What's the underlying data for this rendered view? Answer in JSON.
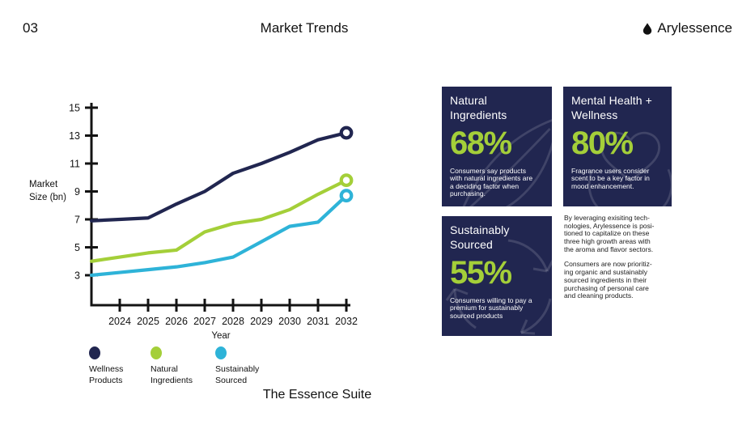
{
  "header": {
    "page_number": "03",
    "title": "Market Trends",
    "brand": "Arylessence"
  },
  "colors": {
    "navy": "#212650",
    "green": "#a4cf39",
    "cyan": "#2eb3d8",
    "ink": "#131313"
  },
  "chart": {
    "y_axis_label_lines": [
      "Market",
      "Size (bn)"
    ],
    "x_axis_label": "Year"
  },
  "chart_data": {
    "type": "line",
    "title": "",
    "xlabel": "Year",
    "ylabel": "Market Size (bn)",
    "x": [
      2023,
      2024,
      2025,
      2026,
      2027,
      2028,
      2029,
      2030,
      2031,
      2032
    ],
    "x_tick_labels": [
      "2024",
      "2025",
      "2026",
      "2027",
      "2028",
      "2029",
      "2030",
      "2031",
      "2032"
    ],
    "y_ticks": [
      3,
      5,
      7,
      9,
      11,
      13,
      15
    ],
    "ylim": [
      1,
      15
    ],
    "grid": false,
    "legend_position": "below-left",
    "end_marker": "open-circle",
    "series": [
      {
        "name": "Wellness Products",
        "color": "#212650",
        "values": [
          6.9,
          7.0,
          7.1,
          8.1,
          9.0,
          10.3,
          11.0,
          11.8,
          12.7,
          13.2
        ]
      },
      {
        "name": "Natural Ingredients",
        "color": "#a4cf39",
        "values": [
          4.0,
          4.3,
          4.6,
          4.8,
          6.1,
          6.7,
          7.0,
          7.7,
          8.8,
          9.8
        ]
      },
      {
        "name": "Sustainably Sourced",
        "color": "#2eb3d8",
        "values": [
          3.0,
          3.2,
          3.4,
          3.6,
          3.9,
          4.3,
          5.4,
          6.5,
          6.8,
          8.7
        ]
      }
    ]
  },
  "legend": {
    "items": [
      {
        "label_lines": [
          "Wellness",
          "Products"
        ],
        "color": "#212650"
      },
      {
        "label_lines": [
          "Natural",
          "Ingredients"
        ],
        "color": "#a4cf39"
      },
      {
        "label_lines": [
          "Sustainably",
          "Sourced"
        ],
        "color": "#2eb3d8"
      }
    ]
  },
  "cards": [
    {
      "title_lines": [
        "Natural",
        "Ingredients"
      ],
      "stat": "68%",
      "body_lines": [
        "Consumers say products",
        "with natural ingredients are",
        "a deciding factor when",
        "purchasing."
      ],
      "watermark": "leaf-icon"
    },
    {
      "title_lines": [
        "Mental Health +",
        "Wellness"
      ],
      "stat": "80%",
      "body_lines": [
        "Fragrance users consider",
        "scent to be a key factor in",
        "mood enhancement."
      ],
      "watermark": "hands-heart-icon"
    },
    {
      "title_lines": [
        "Sustainably",
        "Sourced"
      ],
      "stat": "55%",
      "body_lines": [
        "Consumers willing to pay a",
        "premium for sustainably",
        "sourced products"
      ],
      "watermark": "recycle-icon"
    }
  ],
  "sidebar_text": {
    "paragraphs": [
      {
        "lines": [
          "By leveraging exisiting tech-",
          "nologies, Arylessence is posi-",
          "tioned to capitalize on these",
          "three high growth areas with",
          "the aroma and flavor sectors."
        ]
      },
      {
        "lines": [
          "Consumers are now prioritiz-",
          "ing organic and sustainably",
          "sourced ingredients in their",
          "purchasing of personal care",
          "and cleaning products."
        ]
      }
    ]
  },
  "footer": {
    "title": "The Essence Suite"
  }
}
